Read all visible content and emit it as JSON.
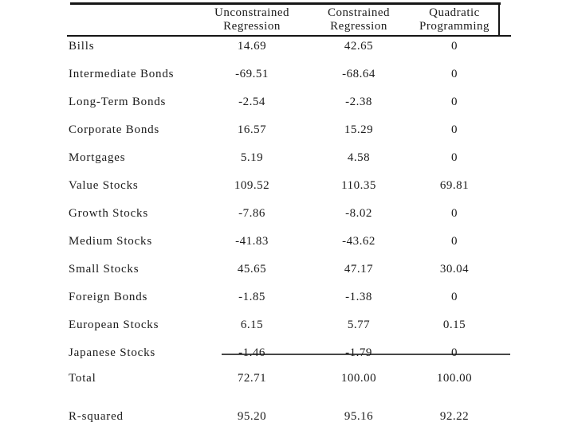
{
  "table": {
    "col_headers": [
      {
        "line1": "Unconstrained",
        "line2": "Regression"
      },
      {
        "line1": "Constrained",
        "line2": "Regression"
      },
      {
        "line1": "Quadratic",
        "line2": "Programming"
      }
    ],
    "rows": [
      {
        "label": "Bills",
        "values": [
          "14.69",
          "42.65",
          "0"
        ]
      },
      {
        "label": "Intermediate Bonds",
        "values": [
          "-69.51",
          "-68.64",
          "0"
        ]
      },
      {
        "label": "Long-Term Bonds",
        "values": [
          "-2.54",
          "-2.38",
          "0"
        ]
      },
      {
        "label": "Corporate Bonds",
        "values": [
          "16.57",
          "15.29",
          "0"
        ]
      },
      {
        "label": "Mortgages",
        "values": [
          "5.19",
          "4.58",
          "0"
        ]
      },
      {
        "label": "Value Stocks",
        "values": [
          "109.52",
          "110.35",
          "69.81"
        ]
      },
      {
        "label": "Growth Stocks",
        "values": [
          "-7.86",
          "-8.02",
          "0"
        ]
      },
      {
        "label": "Medium Stocks",
        "values": [
          "-41.83",
          "-43.62",
          "0"
        ]
      },
      {
        "label": "Small Stocks",
        "values": [
          "45.65",
          "47.17",
          "30.04"
        ]
      },
      {
        "label": "Foreign Bonds",
        "values": [
          "-1.85",
          "-1.38",
          "0"
        ]
      },
      {
        "label": "European Stocks",
        "values": [
          "6.15",
          "5.77",
          "0.15"
        ]
      },
      {
        "label": "Japanese Stocks",
        "values": [
          "-1.46",
          "-1.79",
          "0"
        ]
      }
    ],
    "total_row": {
      "label": "Total",
      "values": [
        "72.71",
        "100.00",
        "100.00"
      ]
    },
    "rsquared_row": {
      "label": "R-squared",
      "values": [
        "95.20",
        "95.16",
        "92.22"
      ]
    }
  },
  "colors": {
    "text": "#1b1b1b",
    "rule": "#151515",
    "background": "#ffffff"
  }
}
